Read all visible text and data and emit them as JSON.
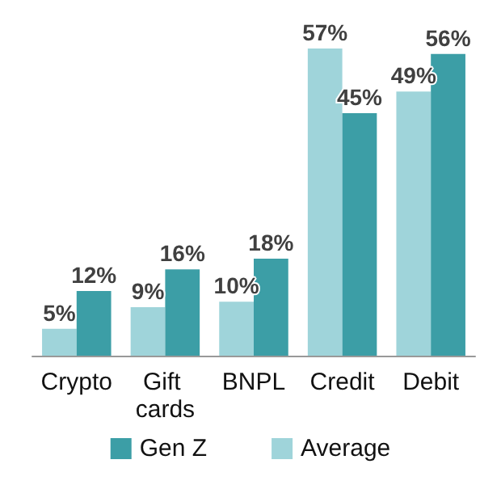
{
  "chart_data": {
    "type": "bar",
    "categories": [
      "Crypto",
      "Gift cards",
      "BNPL",
      "Credit",
      "Debit"
    ],
    "series": [
      {
        "name": "Average",
        "color": "#9fd4da",
        "values": [
          5,
          9,
          10,
          57,
          49
        ],
        "value_labels": [
          "5%",
          "9%",
          "10%",
          "57%",
          "49%"
        ]
      },
      {
        "name": "Gen Z",
        "color": "#3c9ea6",
        "values": [
          12,
          16,
          18,
          45,
          56
        ],
        "value_labels": [
          "12%",
          "16%",
          "18%",
          "45%",
          "56%"
        ]
      }
    ],
    "tick_labels": "x",
    "legend": "bottom"
  }
}
